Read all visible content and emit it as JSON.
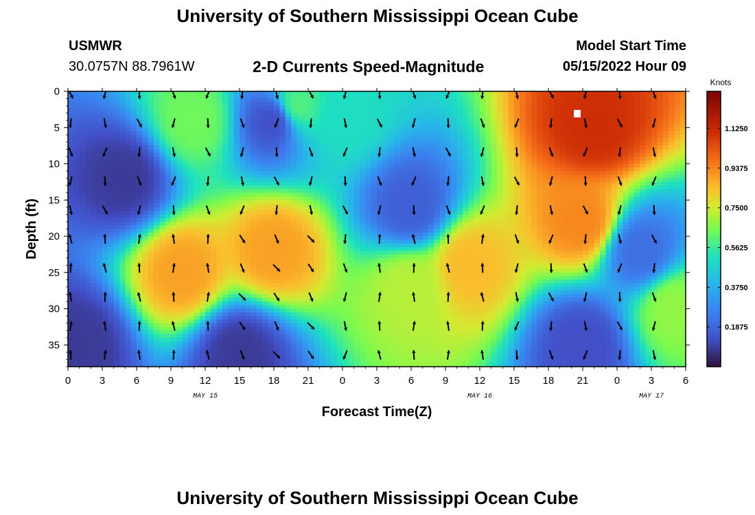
{
  "header": {
    "title": "University of Southern Mississippi Ocean Cube",
    "station_id": "USMWR",
    "station_coords": "30.0757N  88.7961W",
    "subtitle": "2-D Currents Speed-Magnitude",
    "model_start_label": "Model Start Time",
    "model_start_value": "05/15/2022 Hour 09"
  },
  "footer": {
    "title": "University of Southern Mississippi Ocean Cube"
  },
  "chart_data": {
    "type": "heatmap",
    "title": "2-D Currents Speed-Magnitude",
    "xlabel": "Forecast Time(Z)",
    "ylabel": "Depth (ft)",
    "x_tick_labels": [
      "0",
      "3",
      "6",
      "9",
      "12",
      "15",
      "18",
      "21",
      "0",
      "3",
      "6",
      "9",
      "12",
      "15",
      "18",
      "21",
      "0",
      "3",
      "6"
    ],
    "x_ticks_hours": [
      0,
      3,
      6,
      9,
      12,
      15,
      18,
      21,
      24,
      27,
      30,
      33,
      36,
      39,
      42,
      45,
      48,
      51,
      54
    ],
    "xlim": [
      0,
      54
    ],
    "date_labels": [
      {
        "text": "MAY 15",
        "hour": 12
      },
      {
        "text": "MAY 16",
        "hour": 36
      },
      {
        "text": "MAY 17",
        "hour": 51
      }
    ],
    "y_ticks": [
      0,
      5,
      10,
      15,
      20,
      25,
      30,
      35
    ],
    "ylim": [
      0,
      38
    ],
    "y_inverted": true,
    "colorbar": {
      "label": "Knots",
      "ticks": [
        "1.1250",
        "0.9375",
        "0.7500",
        "0.5625",
        "0.3750",
        "0.1875"
      ],
      "range": [
        0,
        1.3
      ]
    },
    "speed_hotspots_knots": [
      {
        "hour": 11,
        "depth": 4,
        "speed": 0.7
      },
      {
        "hour": 20,
        "depth": 2,
        "speed": 0.65
      },
      {
        "hour": 24,
        "depth": 3,
        "speed": 0.55
      },
      {
        "hour": 10,
        "depth": 25,
        "speed": 1.0
      },
      {
        "hour": 18,
        "depth": 22,
        "speed": 1.0
      },
      {
        "hour": 30,
        "depth": 27,
        "speed": 0.8
      },
      {
        "hour": 35,
        "depth": 24,
        "speed": 0.95
      },
      {
        "hour": 46,
        "depth": 5,
        "speed": 1.25
      },
      {
        "hour": 45,
        "depth": 18,
        "speed": 1.05
      },
      {
        "hour": 53,
        "depth": 30,
        "speed": 0.75
      },
      {
        "hour": 5,
        "depth": 12,
        "speed": 0.05
      },
      {
        "hour": 1,
        "depth": 35,
        "speed": 0.05
      },
      {
        "hour": 15,
        "depth": 36,
        "speed": 0.05
      },
      {
        "hour": 18,
        "depth": 4,
        "speed": 0.1
      },
      {
        "hour": 30,
        "depth": 16,
        "speed": 0.15
      },
      {
        "hour": 45,
        "depth": 35,
        "speed": 0.1
      },
      {
        "hour": 50,
        "depth": 22,
        "speed": 0.2
      }
    ],
    "arrow_columns_hours": [
      0,
      3,
      6,
      9,
      12,
      15,
      18,
      21,
      24,
      27,
      30,
      33,
      36,
      39,
      42,
      45,
      48,
      51,
      54
    ],
    "arrow_rows_depth": [
      0,
      4,
      8,
      12,
      16,
      20,
      24,
      28,
      32,
      36
    ]
  }
}
